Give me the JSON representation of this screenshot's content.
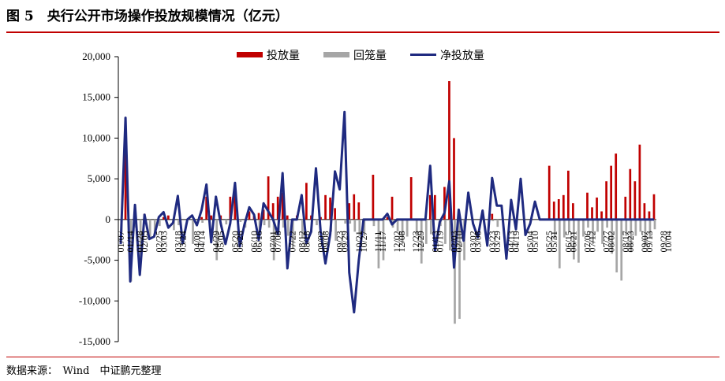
{
  "figure": {
    "title": "图 5　央行公开市场操作投放规模情况（亿元）",
    "source": "数据来源：　Wind　中证鹏元整理"
  },
  "colors": {
    "injection": "#c00000",
    "withdrawal": "#a6a6a6",
    "net": "#1f2a80",
    "rule": "#c00000"
  },
  "chart_data": {
    "type": "bar",
    "title": "",
    "xlabel": "",
    "ylabel": "",
    "ylim": [
      -15000,
      20000
    ],
    "yticks": [
      -15000,
      -10000,
      -5000,
      0,
      5000,
      10000,
      15000,
      20000
    ],
    "ytick_labels": [
      "-15,000",
      "-10,000",
      "-5,000",
      "0",
      "5,000",
      "10,000",
      "15,000",
      "20,000"
    ],
    "legend_position": "top",
    "legend": [
      {
        "name": "投放量",
        "kind": "bar"
      },
      {
        "name": "回笼量",
        "kind": "bar"
      },
      {
        "name": "净投放量",
        "kind": "line"
      }
    ],
    "xtick_labels": [
      "01/07",
      "01/14",
      "01/28",
      "02/05",
      "02/25",
      "03/03",
      "03/18",
      "03/24",
      "04/08",
      "04/14",
      "04/29",
      "05/05",
      "05/20",
      "05/26",
      "06/10",
      "06/16",
      "07/01",
      "07/08",
      "07/22",
      "08/12",
      "08/18",
      "09/02",
      "09/08",
      "09/23",
      "09/29",
      "10/21",
      "10/27",
      "11/11",
      "11/17",
      "12/02",
      "12/08",
      "12/23",
      "12/29",
      "01/13",
      "01/19",
      "02/03",
      "02/10",
      "03/02",
      "03/08",
      "03/23",
      "03/29",
      "04/13",
      "04/19",
      "05/04",
      "05/10",
      "05/25",
      "05/31",
      "06/15",
      "06/21",
      "07/06",
      "07/12",
      "07/27",
      "08/02",
      "08/17",
      "08/23",
      "09/07",
      "09/13",
      "09/28",
      "10/04"
    ],
    "xtick_periods": [
      0,
      2,
      4,
      5,
      8,
      9,
      12,
      13,
      16,
      17,
      20,
      21,
      24,
      25,
      28,
      29,
      32,
      33,
      36,
      38,
      39,
      42,
      43,
      46,
      47,
      50,
      51,
      54,
      55,
      58,
      59,
      62,
      63,
      66,
      67,
      70,
      71,
      74,
      75,
      78,
      79,
      82,
      83,
      86,
      87,
      90,
      91,
      94,
      95,
      98,
      99,
      102,
      103,
      106,
      107,
      110,
      111,
      114,
      115
    ],
    "series": [
      {
        "name": "投放量",
        "values": [
          0,
          12500,
          0,
          0,
          0,
          700,
          0,
          0,
          0,
          300,
          500,
          0,
          0,
          0,
          0,
          0,
          0,
          300,
          2800,
          500,
          0,
          500,
          0,
          2800,
          3000,
          0,
          0,
          1000,
          600,
          800,
          1200,
          5300,
          2000,
          2800,
          3300,
          500,
          0,
          500,
          0,
          4500,
          500,
          0,
          300,
          3000,
          2700,
          1400,
          0,
          0,
          2000,
          3100,
          2100,
          0,
          0,
          5500,
          0,
          0,
          300,
          2800,
          0,
          0,
          0,
          5200,
          0,
          0,
          0,
          3000,
          3000,
          0,
          4000,
          17000,
          10000,
          1000,
          0,
          0,
          0,
          0,
          0,
          0,
          700,
          0,
          0,
          0,
          0,
          0,
          0,
          0,
          0,
          0,
          0,
          0,
          6600,
          2200,
          2500,
          3000,
          6000,
          2000,
          0,
          0,
          3300,
          1500,
          2700,
          1000,
          4700,
          6600,
          8100,
          0,
          2800,
          6200,
          4700,
          9200,
          2000,
          1000,
          3100
        ]
      },
      {
        "name": "回笼量",
        "values": [
          -1600,
          0,
          -7600,
          -1000,
          -5800,
          0,
          -2300,
          -2000,
          -800,
          0,
          0,
          -1300,
          -700,
          0,
          0,
          -3000,
          0,
          -400,
          0,
          0,
          -5000,
          0,
          -600,
          0,
          0,
          -300,
          -1000,
          0,
          0,
          -2000,
          -700,
          -1000,
          -5000,
          -1800,
          -1000,
          -2000,
          -3500,
          0,
          -2300,
          0,
          0,
          -700,
          0,
          0,
          -1500,
          -2600,
          0,
          -500,
          -500,
          -1500,
          -2000,
          -2000,
          0,
          -800,
          -6000,
          -5000,
          0,
          -1000,
          -1500,
          -3000,
          -2100,
          0,
          -2000,
          -5400,
          -3000,
          -1800,
          0,
          -800,
          -3000,
          -3800,
          -12800,
          -12200,
          -5000,
          0,
          0,
          0,
          0,
          0,
          -200,
          -900,
          0,
          0,
          0,
          0,
          0,
          0,
          0,
          0,
          0,
          0,
          0,
          -2500,
          -6000,
          -2200,
          -1500,
          -4900,
          -5300,
          -2100,
          -1000,
          -3000,
          -1500,
          -3000,
          -1000,
          -4200,
          -6500,
          -7500,
          -2000,
          -4000,
          -2000,
          -1500,
          -3300,
          -2200,
          -1200
        ]
      },
      {
        "name": "净投放量",
        "values": [
          -3000,
          12500,
          -7600,
          1800,
          -6800,
          600,
          -2400,
          -2100,
          300,
          900,
          -1000,
          -400,
          2900,
          -2900,
          0,
          500,
          -700,
          1200,
          4300,
          -2800,
          2800,
          -500,
          -3000,
          -500,
          4500,
          -3300,
          -600,
          1500,
          600,
          -2500,
          2000,
          1000,
          0,
          -1800,
          5700,
          -6000,
          0,
          0,
          3000,
          -2900,
          -1500,
          6300,
          -1600,
          -5400,
          -1800,
          5900,
          3700,
          13200,
          -6500,
          -11400,
          -5000,
          0,
          0,
          0,
          0,
          0,
          700,
          -600,
          0,
          0,
          0,
          0,
          0,
          0,
          0,
          6600,
          -3800,
          -300,
          800,
          4700,
          -5900,
          1200,
          -2600,
          3300,
          -500,
          -2200,
          1100,
          -3200,
          5100,
          1700,
          1700,
          -4800,
          2400,
          -1200,
          5000,
          -1900,
          -500,
          2200,
          0,
          0,
          0,
          0,
          0,
          0,
          0,
          0,
          0,
          0,
          0,
          0,
          0,
          0,
          0,
          0,
          0,
          0,
          0,
          0,
          0,
          0,
          0,
          0,
          0
        ]
      }
    ]
  }
}
